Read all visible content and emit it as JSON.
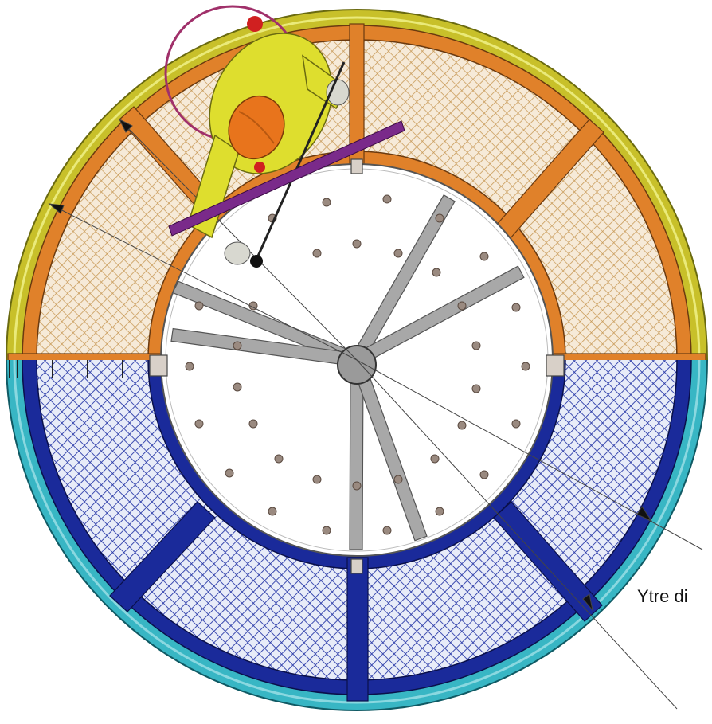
{
  "drawing": {
    "dimension_label": "Ytre di",
    "colors": {
      "background": "#ffffff",
      "upper_frame": "#e0812a",
      "upper_mesh": "#c89a58",
      "upper_rim": "#c8c02a",
      "lower_frame": "#1a2a9a",
      "lower_mesh": "#2a3aa8",
      "lower_rim": "#38b6c4",
      "spokes": "#a8a8a8",
      "bolts": "#9a8a80",
      "worker_suit": "#dede2e",
      "helmet": "#e8741c",
      "harness_ring": "#a0306a",
      "pole": "#7a2a8a"
    }
  }
}
